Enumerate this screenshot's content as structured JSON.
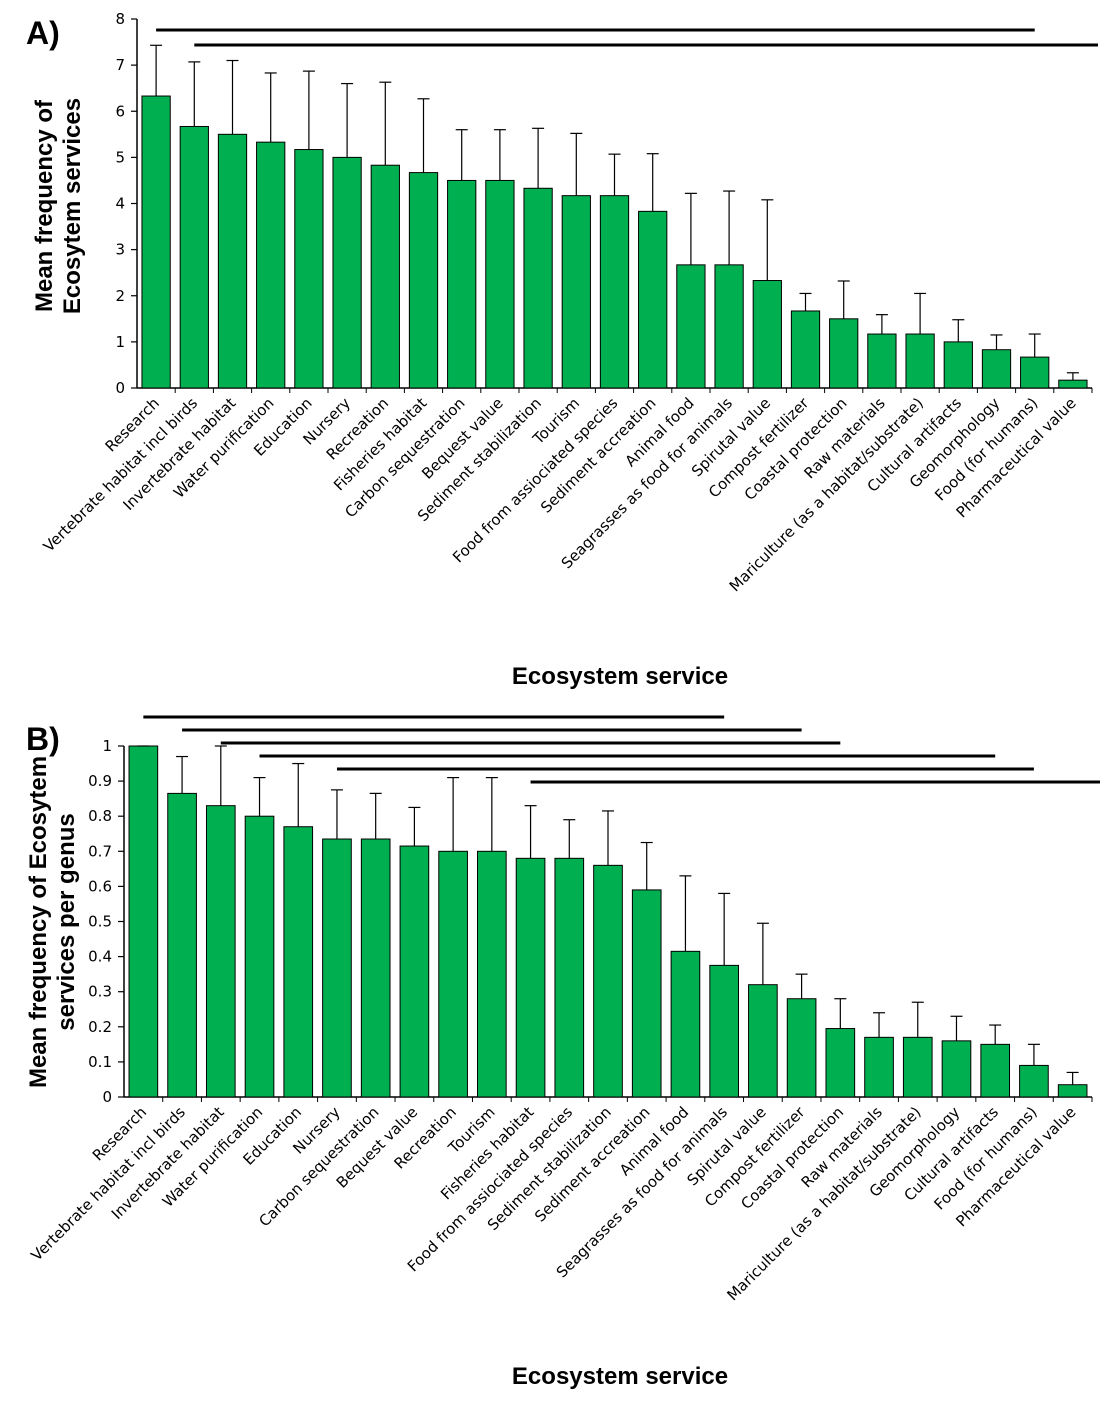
{
  "chart_data": [
    {
      "type": "bar",
      "panel_label": "A)",
      "ylabel_lines": [
        "Mean frequency of",
        "Ecosytem services"
      ],
      "xlabel": "Ecosystem service",
      "ylim": [
        0,
        8
      ],
      "yticks": [
        "0",
        "1",
        "2",
        "3",
        "4",
        "5",
        "6",
        "7",
        "8"
      ],
      "bar_color": "#00b050",
      "categories": [
        "Research",
        "Vertebrate habitat incl birds",
        "Invertebrate habitat",
        "Water purification",
        "Education",
        "Nursery",
        "Recreation",
        "Fisheries habitat",
        "Carbon sequestration",
        "Bequest value",
        "Sediment stabilization",
        "Tourism",
        "Food from assiociated species",
        "Sediment accreation",
        "Animal food",
        "Seagrasses as food for animals",
        "Spirutal value",
        "Compost fertilizer",
        "Coastal protection",
        "Raw materials",
        "Mariculture (as a habitat/substrate)",
        "Cultural artifacts",
        "Geomorphology",
        "Food (for humans)",
        "Pharmaceutical value"
      ],
      "values": [
        6.33,
        5.67,
        5.5,
        5.33,
        5.17,
        5.0,
        4.83,
        4.67,
        4.5,
        4.5,
        4.33,
        4.17,
        4.17,
        3.83,
        2.67,
        2.67,
        2.33,
        1.67,
        1.5,
        1.17,
        1.17,
        1.0,
        0.83,
        0.67,
        0.17
      ],
      "error_upper": [
        1.1,
        1.4,
        1.6,
        1.5,
        1.7,
        1.6,
        1.8,
        1.6,
        1.1,
        1.1,
        1.3,
        1.35,
        0.9,
        1.25,
        1.55,
        1.6,
        1.75,
        0.38,
        0.82,
        0.42,
        0.88,
        0.48,
        0.32,
        0.5,
        0.16
      ],
      "significance_bars": [
        {
          "from": "Research",
          "to": "Food (for humans)"
        },
        {
          "from": "Vertebrate habitat incl birds",
          "to": "Pharmaceutical value"
        }
      ]
    },
    {
      "type": "bar",
      "panel_label": "B)",
      "ylabel_lines": [
        "Mean frequency of Ecosytem",
        "services per genus"
      ],
      "xlabel": "Ecosystem service",
      "ylim": [
        0,
        1
      ],
      "yticks": [
        "0",
        "0.1",
        "0.2",
        "0.3",
        "0.4",
        "0.5",
        "0.6",
        "0.7",
        "0.8",
        "0.9",
        "1"
      ],
      "bar_color": "#00b050",
      "categories": [
        "Research",
        "Vertebrate habitat incl birds",
        "Invertebrate habitat",
        "Water purification",
        "Education",
        "Nursery",
        "Carbon sequestration",
        "Bequest value",
        "Recreation",
        "Tourism",
        "Fisheries habitat",
        "Food from assiociated species",
        "Sediment stabilization",
        "Sediment accreation",
        "Animal food",
        "Seagrasses as food for animals",
        "Spirutal value",
        "Compost fertilizer",
        "Coastal protection",
        "Raw materials",
        "Mariculture (as a habitat/substrate)",
        "Geomorphology",
        "Cultural artifacts",
        "Food (for humans)",
        "Pharmaceutical value"
      ],
      "values": [
        1.0,
        0.865,
        0.83,
        0.8,
        0.77,
        0.735,
        0.735,
        0.715,
        0.7,
        0.7,
        0.68,
        0.68,
        0.66,
        0.59,
        0.415,
        0.375,
        0.32,
        0.28,
        0.195,
        0.17,
        0.17,
        0.16,
        0.15,
        0.09,
        0.035
      ],
      "error_upper": [
        0.0,
        0.105,
        0.17,
        0.11,
        0.18,
        0.14,
        0.13,
        0.11,
        0.21,
        0.21,
        0.15,
        0.11,
        0.155,
        0.135,
        0.215,
        0.205,
        0.175,
        0.07,
        0.085,
        0.07,
        0.1,
        0.07,
        0.055,
        0.06,
        0.035
      ],
      "significance_bars": [
        {
          "from": "Research",
          "to": "Seagrasses as food for animals"
        },
        {
          "from": "Vertebrate habitat incl birds",
          "to": "Compost fertilizer"
        },
        {
          "from": "Invertebrate habitat",
          "to": "Coastal protection"
        },
        {
          "from": "Water purification",
          "to": "Cultural artifacts"
        },
        {
          "from": "Nursery",
          "to": "Food (for humans)"
        },
        {
          "from": "Fisheries habitat",
          "to": "Pharmaceutical value"
        }
      ]
    }
  ]
}
